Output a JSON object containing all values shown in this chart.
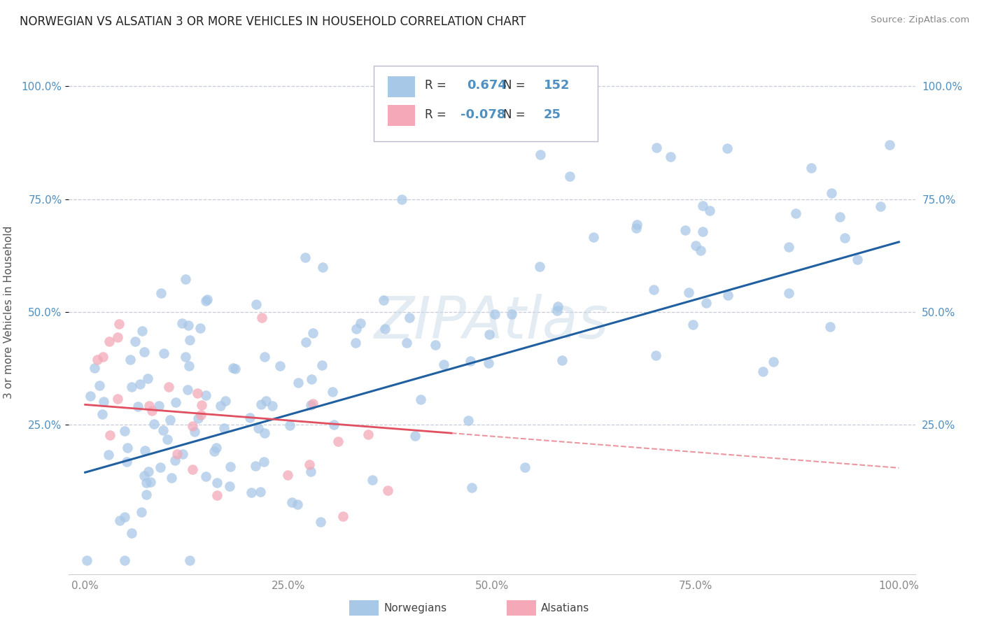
{
  "title": "NORWEGIAN VS ALSATIAN 3 OR MORE VEHICLES IN HOUSEHOLD CORRELATION CHART",
  "source": "Source: ZipAtlas.com",
  "ylabel": "3 or more Vehicles in Household",
  "xlim": [
    -0.02,
    1.02
  ],
  "ylim": [
    -0.08,
    1.08
  ],
  "xtick_positions": [
    0.0,
    0.25,
    0.5,
    0.75,
    1.0
  ],
  "xtick_labels": [
    "0.0%",
    "25.0%",
    "50.0%",
    "75.0%",
    "100.0%"
  ],
  "ytick_positions": [
    0.25,
    0.5,
    0.75,
    1.0
  ],
  "ytick_labels": [
    "25.0%",
    "50.0%",
    "75.0%",
    "100.0%"
  ],
  "dot_color_norwegian": "#a8c8e8",
  "dot_color_alsatian": "#f4a8b8",
  "line_color_norwegian": "#2060a0",
  "line_color_alsatian": "#e05060",
  "watermark_text": "ZIPAtlas",
  "watermark_color": "#c8d8e8",
  "background_color": "#ffffff",
  "grid_color": "#c8ccd8",
  "tick_color_y": "#5090c0",
  "tick_color_x": "#888888",
  "legend_R_nor": "0.674",
  "legend_N_nor": "152",
  "legend_R_als": "-0.078",
  "legend_N_als": "25",
  "legend_text_color": "#5090c0",
  "legend_label_color": "#333333",
  "bottom_legend_nor": "Norwegians",
  "bottom_legend_als": "Alsatians",
  "nor_line_start_y": 0.145,
  "nor_line_end_y": 0.655,
  "als_line_start_y": 0.295,
  "als_line_end_y": 0.155
}
